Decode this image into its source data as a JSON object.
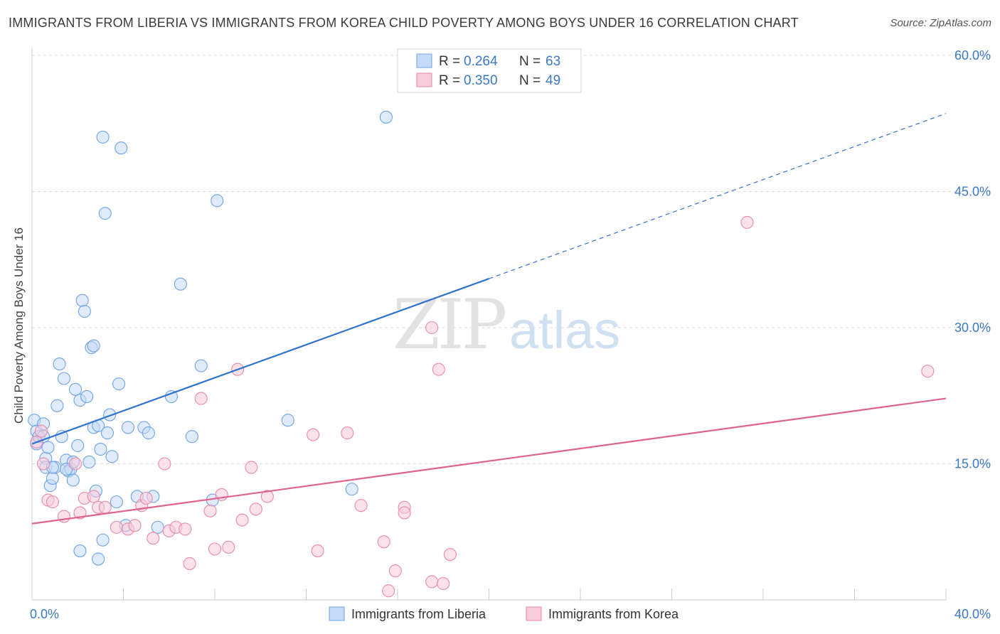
{
  "header": {
    "title": "IMMIGRANTS FROM LIBERIA VS IMMIGRANTS FROM KOREA CHILD POVERTY AMONG BOYS UNDER 16 CORRELATION CHART",
    "source": "Source: ZipAtlas.com"
  },
  "watermark": {
    "zip": "ZIP",
    "atlas": "atlas"
  },
  "colors": {
    "liberia": "#6fa3e6",
    "liberia_fill": "#c5daf6",
    "liberia_line": "#2f72d0",
    "korea": "#e88aa8",
    "korea_fill": "#f8cbd9",
    "korea_line": "#e0628f",
    "value_text": "#3b78c9",
    "grid": "#d9d9d9"
  },
  "legend_top": {
    "rows": [
      {
        "r_label": "R =",
        "r_value": "0.264",
        "n_label": "N =",
        "n_value": "63",
        "series": "liberia"
      },
      {
        "r_label": "R =",
        "r_value": "0.350",
        "n_label": "N =",
        "n_value": "49",
        "series": "korea"
      }
    ]
  },
  "chart_data": {
    "type": "scatter",
    "title": "IMMIGRANTS FROM LIBERIA VS IMMIGRANTS FROM KOREA CHILD POVERTY AMONG BOYS UNDER 16 CORRELATION CHART",
    "xlabel": "",
    "ylabel": "Child Poverty Among Boys Under 16",
    "xlim": [
      0,
      40
    ],
    "ylim": [
      0,
      60
    ],
    "x_tick_labels": [
      "0.0%",
      "40.0%"
    ],
    "y_ticks": [
      15,
      30,
      45,
      60
    ],
    "y_tick_labels": [
      "15.0%",
      "30.0%",
      "45.0%",
      "60.0%"
    ],
    "grid": true,
    "legend_position": "bottom",
    "series": [
      {
        "name": "Immigrants from Liberia",
        "key": "liberia",
        "points": [
          [
            0.1,
            19.8
          ],
          [
            0.2,
            18.6
          ],
          [
            0.2,
            17.2
          ],
          [
            0.3,
            18.0
          ],
          [
            0.5,
            19.4
          ],
          [
            0.5,
            18.0
          ],
          [
            0.6,
            15.6
          ],
          [
            0.6,
            14.6
          ],
          [
            0.7,
            16.8
          ],
          [
            0.8,
            12.6
          ],
          [
            0.9,
            13.4
          ],
          [
            1.0,
            14.6
          ],
          [
            1.1,
            21.4
          ],
          [
            1.2,
            26.0
          ],
          [
            1.3,
            18.0
          ],
          [
            1.4,
            24.4
          ],
          [
            1.5,
            15.4
          ],
          [
            1.6,
            14.2
          ],
          [
            1.7,
            14.4
          ],
          [
            1.8,
            15.2
          ],
          [
            1.8,
            13.2
          ],
          [
            1.9,
            23.2
          ],
          [
            2.0,
            17.0
          ],
          [
            2.1,
            22.0
          ],
          [
            2.2,
            33.0
          ],
          [
            2.3,
            31.8
          ],
          [
            2.4,
            22.4
          ],
          [
            2.5,
            15.2
          ],
          [
            2.6,
            27.8
          ],
          [
            2.7,
            28.0
          ],
          [
            2.7,
            19.0
          ],
          [
            2.8,
            12.0
          ],
          [
            2.9,
            19.2
          ],
          [
            3.0,
            16.6
          ],
          [
            3.1,
            51.0
          ],
          [
            3.2,
            42.6
          ],
          [
            3.3,
            18.4
          ],
          [
            3.4,
            20.4
          ],
          [
            3.5,
            15.8
          ],
          [
            3.7,
            10.8
          ],
          [
            3.8,
            23.8
          ],
          [
            3.9,
            49.8
          ],
          [
            4.2,
            19.0
          ],
          [
            4.6,
            11.4
          ],
          [
            4.9,
            19.0
          ],
          [
            5.1,
            18.4
          ],
          [
            5.3,
            11.4
          ],
          [
            5.5,
            8.0
          ],
          [
            6.1,
            22.4
          ],
          [
            6.5,
            34.8
          ],
          [
            7.0,
            18.0
          ],
          [
            7.4,
            25.8
          ],
          [
            7.9,
            11.0
          ],
          [
            8.1,
            44.0
          ],
          [
            11.2,
            19.8
          ],
          [
            14.0,
            12.2
          ],
          [
            15.5,
            53.2
          ],
          [
            2.1,
            5.4
          ],
          [
            2.9,
            4.5
          ],
          [
            3.1,
            6.6
          ],
          [
            4.1,
            8.2
          ],
          [
            0.9,
            14.6
          ],
          [
            1.5,
            14.4
          ]
        ],
        "trend": {
          "x0": 0,
          "y0": 17.2,
          "x1": 20.0,
          "y1": 35.4,
          "dash_to_x": 40,
          "dash_to_y": 53.6
        }
      },
      {
        "name": "Immigrants from Korea",
        "key": "korea",
        "points": [
          [
            0.2,
            17.4
          ],
          [
            0.4,
            18.6
          ],
          [
            0.5,
            15.0
          ],
          [
            0.7,
            11.0
          ],
          [
            0.9,
            10.8
          ],
          [
            1.4,
            9.2
          ],
          [
            2.1,
            9.6
          ],
          [
            2.3,
            11.2
          ],
          [
            2.7,
            11.4
          ],
          [
            2.9,
            10.2
          ],
          [
            3.2,
            10.2
          ],
          [
            3.7,
            8.0
          ],
          [
            4.2,
            7.8
          ],
          [
            4.5,
            8.2
          ],
          [
            4.8,
            10.4
          ],
          [
            5.0,
            11.2
          ],
          [
            5.3,
            6.8
          ],
          [
            5.8,
            15.0
          ],
          [
            6.0,
            7.6
          ],
          [
            6.3,
            8.0
          ],
          [
            6.7,
            7.8
          ],
          [
            6.9,
            4.0
          ],
          [
            7.4,
            22.2
          ],
          [
            7.8,
            9.8
          ],
          [
            8.0,
            5.6
          ],
          [
            8.3,
            11.6
          ],
          [
            8.6,
            5.8
          ],
          [
            9.0,
            25.4
          ],
          [
            9.2,
            8.8
          ],
          [
            9.6,
            14.6
          ],
          [
            9.8,
            10.0
          ],
          [
            10.3,
            11.4
          ],
          [
            12.3,
            18.2
          ],
          [
            12.5,
            5.4
          ],
          [
            13.8,
            18.4
          ],
          [
            14.4,
            10.4
          ],
          [
            15.4,
            6.4
          ],
          [
            15.6,
            1.0
          ],
          [
            15.9,
            3.2
          ],
          [
            16.3,
            10.2
          ],
          [
            16.3,
            9.6
          ],
          [
            17.5,
            30.0
          ],
          [
            17.5,
            2.0
          ],
          [
            17.8,
            25.4
          ],
          [
            18.0,
            1.8
          ],
          [
            18.3,
            5.0
          ],
          [
            31.3,
            41.6
          ],
          [
            39.2,
            25.2
          ],
          [
            1.9,
            15.0
          ]
        ],
        "trend": {
          "x0": 0,
          "y0": 8.4,
          "x1": 40,
          "y1": 22.2
        }
      }
    ]
  }
}
